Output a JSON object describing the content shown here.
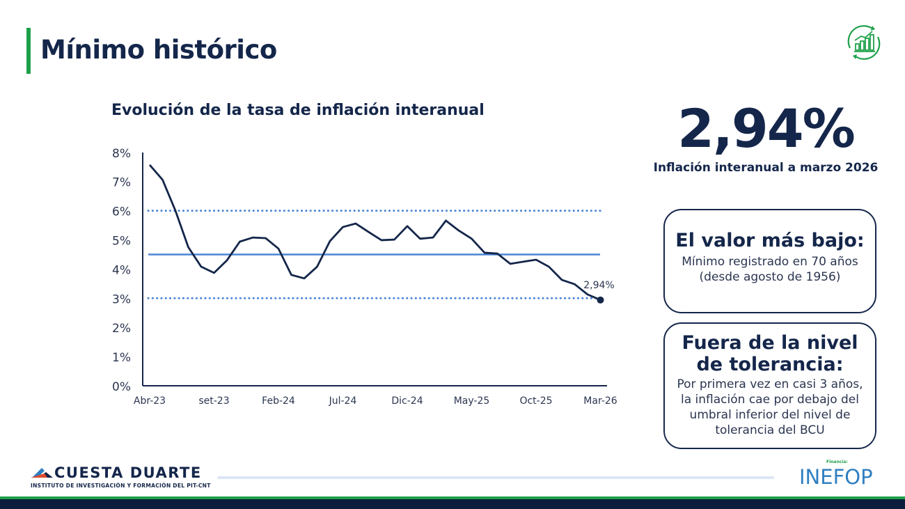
{
  "header": {
    "title": "Mínimo histórico",
    "icon": "growth-chart-icon"
  },
  "colors": {
    "navy": "#14264a",
    "green": "#1fa04a",
    "blue_ref": "#4a86d4",
    "inefop_blue": "#2f7fc1",
    "inefop_orange": "#f39a1e"
  },
  "chart_data": {
    "type": "line",
    "title": "Evolución de la tasa de inflación interanual",
    "xlabel": "",
    "ylabel": "",
    "ylim": [
      0,
      8
    ],
    "yticks": [
      "0%",
      "1%",
      "2%",
      "3%",
      "4%",
      "5%",
      "6%",
      "7%",
      "8%"
    ],
    "x_tick_labels": [
      "Abr-23",
      "set-23",
      "Feb-24",
      "Jul-24",
      "Dic-24",
      "May-25",
      "Oct-25",
      "Mar-26"
    ],
    "x_start": "Abr-23",
    "x_end": "Mar-26",
    "values": [
      7.57,
      7.06,
      6.0,
      4.75,
      4.08,
      3.87,
      4.3,
      4.94,
      5.08,
      5.06,
      4.7,
      3.8,
      3.68,
      4.08,
      4.96,
      5.44,
      5.56,
      5.27,
      4.99,
      5.01,
      5.47,
      5.04,
      5.08,
      5.66,
      5.32,
      5.04,
      4.56,
      4.53,
      4.18,
      4.25,
      4.32,
      4.08,
      3.63,
      3.48,
      3.13,
      2.94
    ],
    "reference_lines": [
      {
        "value": 6,
        "style": "dotted"
      },
      {
        "value": 4.5,
        "style": "solid"
      },
      {
        "value": 3,
        "style": "dotted"
      }
    ],
    "last_label": "2,94%",
    "grid": false
  },
  "highlight": {
    "value": "2,94%",
    "caption": "Inflación interanual a marzo 2026"
  },
  "cards": [
    {
      "title": "El valor más bajo:",
      "text": "Mínimo registrado en 70 años\n(desde agosto de 1956)"
    },
    {
      "title": "Fuera de la nivel\nde tolerancia:",
      "text": "Por primera vez en casi 3 años,\nla inflación cae por debajo del\numbral inferior del nivel de\ntolerancia del BCU"
    }
  ],
  "footer": {
    "org_name": "CUESTA DUARTE",
    "org_sub": "INSTITUTO DE INVESTIGACIÓN Y FORMACIÓN DEL PIT-CNT",
    "funder_label": "Financia:",
    "funder": "INEFOP"
  }
}
